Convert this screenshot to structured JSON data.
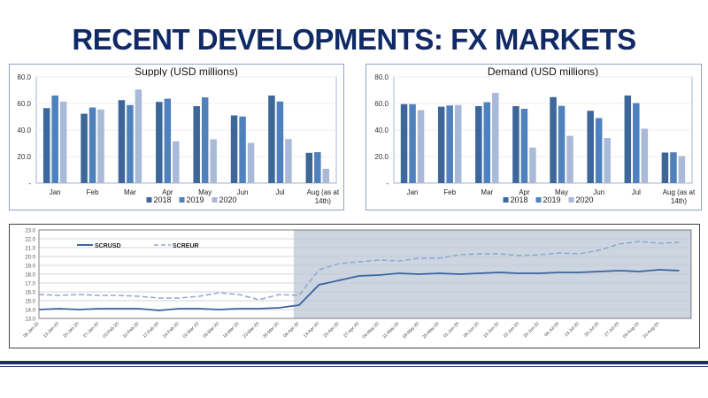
{
  "title": "RECENT DEVELOPMENTS: FX MARKETS",
  "colors": {
    "s2018": "#3d6699",
    "s2019": "#4f81bd",
    "s2020": "#a9bad8",
    "navy": "#0f2a66",
    "shade": "#cdd5e1",
    "line": "#3a64a0",
    "dash": "#8fa7d0"
  },
  "chart_data": [
    {
      "type": "bar",
      "title": "Supply (USD millions)",
      "categories": [
        "Jan",
        "Feb",
        "Mar",
        "Apr",
        "May",
        "Jun",
        "Jul",
        "Aug (as at|14th)"
      ],
      "series": [
        {
          "name": "2018",
          "values": [
            56.5,
            52.3,
            62.5,
            61.2,
            58.0,
            51.0,
            66.0,
            22.8
          ]
        },
        {
          "name": "2019",
          "values": [
            66.0,
            57.0,
            58.8,
            63.6,
            64.6,
            50.2,
            61.5,
            23.3
          ]
        },
        {
          "name": "2020",
          "values": [
            61.4,
            55.5,
            70.5,
            31.5,
            33.0,
            30.3,
            33.2,
            10.8
          ]
        }
      ],
      "yticks": [
        "-",
        "20.0",
        "40.0",
        "60.0",
        "80.0"
      ],
      "ylim": [
        0,
        80
      ]
    },
    {
      "type": "bar",
      "title": "Demand (USD millions)",
      "categories": [
        "Jan",
        "Feb",
        "Mar",
        "Apr",
        "May",
        "Jun",
        "Jul",
        "Aug (as at|14th)"
      ],
      "series": [
        {
          "name": "2018",
          "values": [
            59.5,
            57.6,
            58.0,
            58.0,
            64.8,
            54.5,
            66.0,
            23.0
          ]
        },
        {
          "name": "2019",
          "values": [
            59.5,
            58.5,
            61.0,
            56.0,
            58.2,
            49.0,
            60.3,
            23.2
          ]
        },
        {
          "name": "2020",
          "values": [
            55.0,
            58.8,
            68.0,
            26.8,
            35.6,
            34.0,
            41.0,
            20.3
          ]
        }
      ],
      "yticks": [
        "-",
        "20.0",
        "40.0",
        "60.0",
        "80.0"
      ],
      "ylim": [
        0,
        80
      ]
    },
    {
      "type": "line",
      "ylim": [
        13,
        23
      ],
      "yticks": [
        "13.0",
        "14.0",
        "15.0",
        "16.0",
        "17.0",
        "18.0",
        "19.0",
        "20.0",
        "21.0",
        "22.0",
        "23.0"
      ],
      "xticks": [
        "06-Jan-20",
        "13-Jan-20",
        "20-Jan-20",
        "27-Jan-20",
        "03-Feb-20",
        "10-Feb-20",
        "17-Feb-20",
        "24-Feb-20",
        "02-Mar-20",
        "09-Mar-20",
        "16-Mar-20",
        "23-Mar-20",
        "30-Mar-20",
        "06-Apr-20",
        "13-Apr-20",
        "20-Apr-20",
        "27-Apr-20",
        "04-May-20",
        "11-May-20",
        "18-May-20",
        "25-May-20",
        "01-Jun-20",
        "08-Jun-20",
        "15-Jun-20",
        "22-Jun-20",
        "29-Jun-20",
        "06-Jul-20",
        "13-Jul-20",
        "20-Jul-20",
        "27-Jul-20",
        "03-Aug-20",
        "10-Aug-20"
      ],
      "series": [
        {
          "name": "SCRUSD",
          "values": [
            14.0,
            14.1,
            14.0,
            14.1,
            14.1,
            14.1,
            13.9,
            14.1,
            14.1,
            14.0,
            14.1,
            14.1,
            14.2,
            14.5,
            16.8,
            17.3,
            17.8,
            17.9,
            18.1,
            18.0,
            18.1,
            18.0,
            18.1,
            18.2,
            18.1,
            18.1,
            18.2,
            18.2,
            18.3,
            18.4,
            18.3,
            18.5,
            18.4
          ]
        },
        {
          "name": "SCREUR",
          "values": [
            15.7,
            15.6,
            15.7,
            15.6,
            15.6,
            15.5,
            15.3,
            15.3,
            15.5,
            15.9,
            15.7,
            15.1,
            15.7,
            15.6,
            18.5,
            19.2,
            19.4,
            19.6,
            19.5,
            19.8,
            19.8,
            20.2,
            20.3,
            20.3,
            20.1,
            20.2,
            20.4,
            20.3,
            20.7,
            21.4,
            21.7,
            21.5,
            21.6
          ]
        }
      ],
      "shaded_from": "06-Apr-20"
    }
  ]
}
